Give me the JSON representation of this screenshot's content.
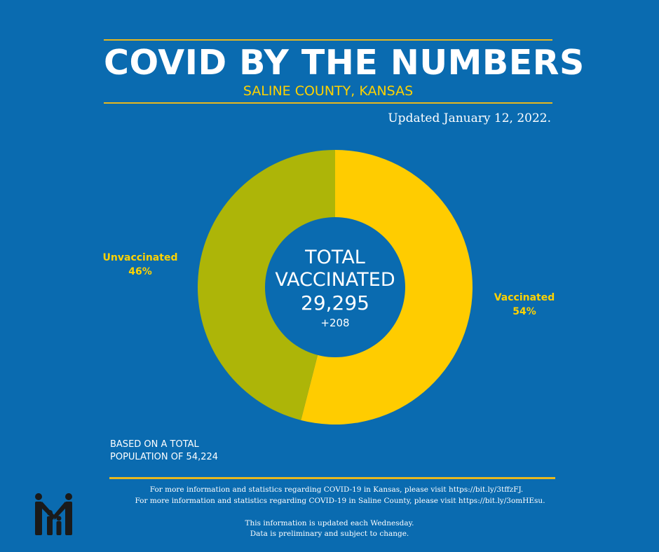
{
  "header": {
    "title": "COVID BY THE NUMBERS",
    "subtitle": "SALINE COUNTY, KANSAS",
    "updated": "Updated January 12, 2022."
  },
  "chart_data": {
    "type": "pie",
    "donut": true,
    "categories": [
      "Vaccinated",
      "Unvaccinated"
    ],
    "values": [
      54,
      46
    ],
    "value_labels": [
      "54%",
      "46%"
    ],
    "colors": [
      "#ffcc00",
      "#adb508"
    ],
    "center": {
      "line1": "TOTAL",
      "line2": "VACCINATED",
      "value": "29,295",
      "delta": "+208"
    }
  },
  "labels": {
    "unvaccinated": {
      "name": "Unvaccinated",
      "pct": "46%"
    },
    "vaccinated": {
      "name": "Vaccinated",
      "pct": "54%"
    }
  },
  "basis": {
    "line1": "BASED ON A TOTAL",
    "line2": "POPULATION OF 54,224"
  },
  "footer": {
    "line1": "For more information and statistics regarding COVID-19 in Kansas, please visit https://bit.ly/3tffzFJ.",
    "line2": "For more information and statistics regarding COVID-19 in Saline County, please visit  https://bit.ly/3omHEsu.",
    "line3": "This information is updated each Wednesday.",
    "line4": "Data is preliminary and subject to change."
  },
  "colors": {
    "background": "#0a6bb0",
    "accent": "#ffd200",
    "rule": "#e8b81e"
  },
  "logo": {
    "icon": "family-icon"
  }
}
